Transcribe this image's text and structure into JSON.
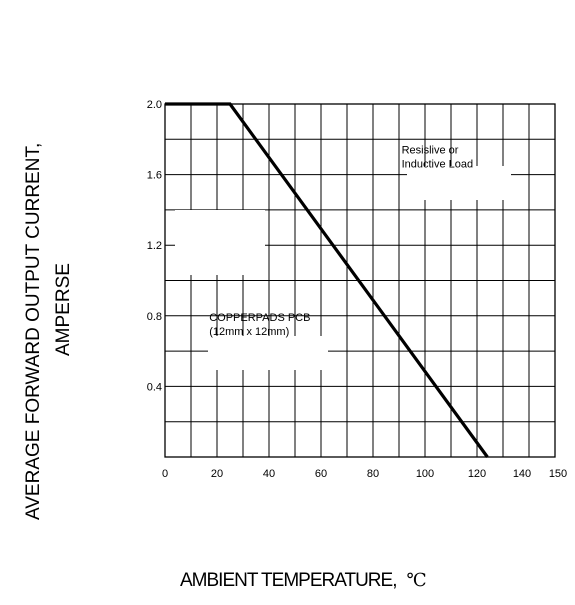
{
  "chart_data": {
    "type": "line",
    "ylabel_line1": "AVERAGE FORWARD OUTPUT CURRENT,",
    "ylabel_line2": "AMPERSE",
    "xlabel": "AMBIENT TEMPERATURE,",
    "xunit": "℃",
    "xlim": [
      0,
      150
    ],
    "ylim": [
      0,
      2.0
    ],
    "x_ticks": [
      "0",
      "20",
      "40",
      "60",
      "80",
      "100",
      "120",
      "140",
      "150"
    ],
    "x_tick_values": [
      0,
      20,
      40,
      60,
      80,
      100,
      120,
      140,
      150
    ],
    "y_ticks": [
      "0.4",
      "0.8",
      "1.2",
      "1.6",
      "2.0"
    ],
    "y_tick_values": [
      0.4,
      0.8,
      1.2,
      1.6,
      2.0
    ],
    "grid": true,
    "series": [
      {
        "x": [
          0,
          25,
          124
        ],
        "y": [
          2.0,
          2.0,
          0
        ]
      }
    ],
    "annotations": [
      {
        "lines": [
          "Resislive or",
          "Inductive Load"
        ],
        "x": 91,
        "y": 1.72
      },
      {
        "lines": [
          "COPPERPADS PCB",
          "(12mm x 12mm)"
        ],
        "x": 17,
        "y": 0.77
      }
    ],
    "line_color": "#000000",
    "grid_color": "#000000"
  }
}
